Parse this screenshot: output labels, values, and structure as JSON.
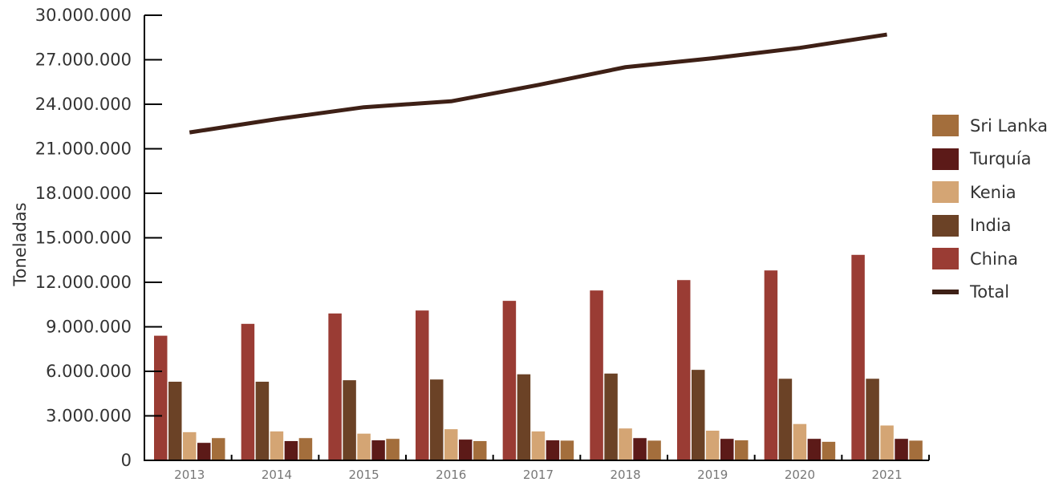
{
  "chart_data": {
    "type": "bar",
    "title": "",
    "xlabel": "",
    "ylabel": "Toneladas",
    "ylim": [
      0,
      30000000
    ],
    "ytick_values": [
      0,
      3000000,
      6000000,
      9000000,
      12000000,
      15000000,
      18000000,
      21000000,
      24000000,
      27000000,
      30000000
    ],
    "ytick_labels": [
      "0",
      "3.000.000",
      "6.000.000",
      "9.000.000",
      "12.000.000",
      "15.000.000",
      "18.000.000",
      "21.000.000",
      "24.000.000",
      "27.000.000",
      "30.000.000"
    ],
    "categories": [
      "2013",
      "2014",
      "2015",
      "2016",
      "2017",
      "2018",
      "2019",
      "2020",
      "2021"
    ],
    "grid": false,
    "legend_position": "right",
    "series": [
      {
        "name": "China",
        "kind": "bar",
        "color": "#9a3c34",
        "values": [
          8400000,
          9200000,
          9900000,
          10100000,
          10750000,
          11450000,
          12150000,
          12800000,
          13850000
        ]
      },
      {
        "name": "India",
        "kind": "bar",
        "color": "#6b4226",
        "values": [
          5300000,
          5300000,
          5400000,
          5450000,
          5800000,
          5850000,
          6100000,
          5500000,
          5500000
        ]
      },
      {
        "name": "Kenia",
        "kind": "bar",
        "color": "#d4a574",
        "values": [
          1900000,
          1950000,
          1800000,
          2100000,
          1950000,
          2150000,
          2000000,
          2450000,
          2350000
        ]
      },
      {
        "name": "Turquía",
        "kind": "bar",
        "color": "#5c1a18",
        "values": [
          1180000,
          1300000,
          1350000,
          1400000,
          1350000,
          1500000,
          1450000,
          1450000,
          1450000
        ]
      },
      {
        "name": "Sri Lanka",
        "kind": "bar",
        "color": "#a36e3c",
        "values": [
          1500000,
          1500000,
          1450000,
          1300000,
          1330000,
          1330000,
          1350000,
          1250000,
          1330000
        ]
      },
      {
        "name": "Total",
        "kind": "line",
        "color": "#3e2016",
        "values": [
          22100000,
          23000000,
          23800000,
          24200000,
          25300000,
          26500000,
          27100000,
          27800000,
          28700000
        ]
      }
    ]
  },
  "legend": {
    "items": [
      {
        "label": "Sri Lanka",
        "color": "#a36e3c",
        "kind": "bar"
      },
      {
        "label": "Turquía",
        "color": "#5c1a18",
        "kind": "bar"
      },
      {
        "label": "Kenia",
        "color": "#d4a574",
        "kind": "bar"
      },
      {
        "label": "India",
        "color": "#6b4226",
        "kind": "bar"
      },
      {
        "label": "China",
        "color": "#9a3c34",
        "kind": "bar"
      },
      {
        "label": "Total",
        "color": "#3e2016",
        "kind": "line"
      }
    ]
  }
}
